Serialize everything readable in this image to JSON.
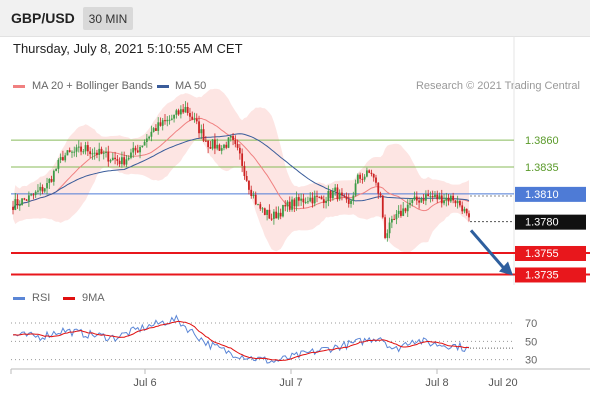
{
  "header": {
    "symbol": "GBP/USD",
    "timeframe": "30 MIN"
  },
  "timestamp": "Thursday, July 8, 2021 5:10:55 AM CET",
  "legend": {
    "ma20_label": "MA 20 + Bollinger Bands",
    "ma50_label": "MA 50",
    "copyright": "Research © 2021 Trading Central"
  },
  "rsi_legend": {
    "rsi_label": "RSI",
    "ma_label": "9MA"
  },
  "colors": {
    "ma20": "#f08080",
    "ma50": "#3a5c9a",
    "bands": "#fde0de",
    "support": "#e8171c",
    "pivot": "#4e7bd6",
    "resistance": "#88bb5a",
    "arrow": "#2e5f9e",
    "up": "#3d9b46",
    "down": "#cc2222",
    "rsi": "#5b86d6",
    "rsi_ma": "#e01010"
  },
  "chart_data": [
    {
      "type": "candlestick",
      "x_labels": [
        "Jul 6",
        "Jul 7",
        "Jul 8",
        "Jul 20"
      ],
      "ylim": [
        1.3728,
        1.3902
      ],
      "last_price": "1.3780",
      "levels": [
        {
          "label": "1.3860",
          "value": 1.386,
          "kind": "resistance"
        },
        {
          "label": "1.3835",
          "value": 1.3835,
          "kind": "resistance"
        },
        {
          "label": "1.3810",
          "value": 1.381,
          "kind": "pivot"
        },
        {
          "label": "1.3755",
          "value": 1.3755,
          "kind": "support"
        },
        {
          "label": "1.3735",
          "value": 1.3735,
          "kind": "support"
        }
      ],
      "forecast": {
        "from": 1.3776,
        "to": 1.3735,
        "direction": "down"
      }
    },
    {
      "type": "line",
      "title": "RSI",
      "ylim": [
        22,
        82
      ],
      "y_ticks": [
        {
          "label": "70",
          "value": 70
        },
        {
          "label": "50",
          "value": 50
        },
        {
          "label": "30",
          "value": 30
        }
      ]
    }
  ]
}
